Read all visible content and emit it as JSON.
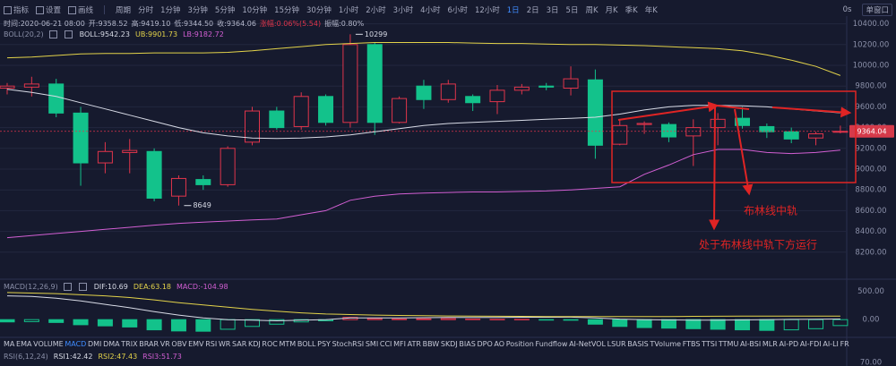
{
  "toolbar": {
    "left": [
      "指标",
      "设置",
      "画线"
    ],
    "periods_title": "周期",
    "periods": [
      "分时",
      "1分钟",
      "3分钟",
      "5分钟",
      "10分钟",
      "15分钟",
      "30分钟",
      "1小时",
      "2小时",
      "3小时",
      "4小时",
      "6小时",
      "12小时",
      "1日",
      "2日",
      "3日",
      "5日",
      "周K",
      "月K",
      "季K",
      "年K"
    ],
    "active_period": "1日",
    "right": [
      "0s",
      "单窗口"
    ]
  },
  "info_line": [
    "时间:2020-06-21 08:00",
    "开:9358.52",
    "高:9419.10",
    "低:9344.50",
    "收:9364.06",
    "涨幅:0.06%(5.54)",
    "振幅:0.80%"
  ],
  "chart_data": [
    {
      "type": "candlestick",
      "legend": [
        "BOLL(20,2)",
        "BOLL:9542.23",
        "UB:9901.73",
        "LB:9182.72"
      ],
      "legend_colors": [
        "#8a8fa8",
        "#d8dbe6",
        "#e3d34a",
        "#d25fd3"
      ],
      "up_color": "#e0354b",
      "down_color": "#13c28b",
      "open": [
        9780,
        9790,
        9820,
        9540,
        9060,
        9160,
        9170,
        8740,
        8900,
        8850,
        9260,
        9560,
        9410,
        9700,
        9450,
        10200,
        9450,
        9800,
        9670,
        9700,
        9650,
        9760,
        9800,
        9780,
        9860,
        9240,
        9430,
        9430,
        9320,
        9400,
        9490,
        9410,
        9360,
        9300,
        9358.52
      ],
      "close": [
        9800,
        9820,
        9540,
        9060,
        9170,
        9180,
        8720,
        8910,
        8850,
        9200,
        9560,
        9400,
        9700,
        9450,
        10200,
        9450,
        9680,
        9670,
        9820,
        9640,
        9760,
        9790,
        9790,
        9870,
        9230,
        9420,
        9440,
        9310,
        9400,
        9480,
        9420,
        9360,
        9290,
        9340,
        9364.06
      ],
      "high": [
        9830,
        9890,
        9870,
        9600,
        9260,
        9290,
        9200,
        8940,
        8940,
        9220,
        9600,
        9600,
        9740,
        9720,
        10299,
        10220,
        9700,
        9860,
        9860,
        9720,
        9810,
        9820,
        9830,
        9990,
        9960,
        9480,
        9460,
        9450,
        9480,
        9540,
        9600,
        9440,
        9400,
        9360,
        9419.1
      ],
      "low": [
        9720,
        9700,
        9500,
        8840,
        8960,
        8960,
        8690,
        8649,
        8800,
        8830,
        9230,
        9380,
        9380,
        9420,
        9400,
        9330,
        9440,
        9580,
        9640,
        9560,
        9530,
        9720,
        9760,
        9710,
        9100,
        9230,
        9340,
        9260,
        9030,
        9230,
        9390,
        9300,
        9250,
        9230,
        9344.5
      ],
      "series": [
        {
          "color": "#d8dbe6",
          "values": [
            9770,
            9740,
            9700,
            9640,
            9580,
            9520,
            9460,
            9400,
            9350,
            9320,
            9300,
            9296,
            9300,
            9310,
            9330,
            9360,
            9390,
            9420,
            9440,
            9450,
            9460,
            9470,
            9480,
            9490,
            9500,
            9530,
            9570,
            9600,
            9615,
            9615,
            9610,
            9600,
            9580,
            9560,
            9542.23
          ]
        },
        {
          "color": "#e3d34a",
          "values": [
            10072,
            10080,
            10095,
            10110,
            10115,
            10115,
            10120,
            10120,
            10120,
            10125,
            10140,
            10160,
            10180,
            10200,
            10210,
            10220,
            10220,
            10220,
            10220,
            10215,
            10210,
            10210,
            10205,
            10200,
            10200,
            10195,
            10190,
            10180,
            10170,
            10160,
            10140,
            10100,
            10050,
            9990,
            9901.73
          ]
        },
        {
          "color": "#d25fd3",
          "values": [
            8340,
            8360,
            8380,
            8400,
            8420,
            8440,
            8460,
            8478,
            8490,
            8500,
            8510,
            8520,
            8560,
            8600,
            8700,
            8740,
            8760,
            8770,
            8775,
            8780,
            8780,
            8785,
            8790,
            8800,
            8815,
            8830,
            8950,
            9040,
            9140,
            9190,
            9190,
            9160,
            9150,
            9160,
            9182.72
          ]
        }
      ],
      "last_price": 9364.04,
      "ylim": [
        8000,
        10500
      ],
      "yticks": [
        {
          "value": 8200,
          "label": "8200.00"
        },
        {
          "value": 8400,
          "label": "8400.00"
        },
        {
          "value": 8600,
          "label": "8600.00"
        },
        {
          "value": 8800,
          "label": "8800.00"
        },
        {
          "value": 9000,
          "label": "9000.00"
        },
        {
          "value": 9200,
          "label": "9200.00"
        },
        {
          "value": 9400,
          "label": "9400.00"
        },
        {
          "value": 9600,
          "label": "9600.00"
        },
        {
          "value": 9800,
          "label": "9800.00"
        },
        {
          "value": 10000,
          "label": "10000.00"
        },
        {
          "value": 10200,
          "label": "10200.00"
        },
        {
          "value": 10400,
          "label": "10400.00"
        }
      ],
      "grid": true,
      "annotations": [
        "布林线中轨",
        "处于布林线中轨下方运行"
      ]
    },
    {
      "type": "macd",
      "legend": [
        "MACD(12,26,9)",
        "DIF:10.69",
        "DEA:63.18",
        "MACD:-104.98"
      ],
      "legend_colors": [
        "#8a8fa8",
        "#d8dbe6",
        "#e3d34a",
        "#d25fd3"
      ],
      "up_color": "#e0354b",
      "down_color": "#13c28b",
      "values": [
        -40,
        -35,
        -50,
        -90,
        -110,
        -130,
        -180,
        -200,
        -205,
        -170,
        -120,
        -80,
        -40,
        -20,
        40,
        20,
        10,
        15,
        20,
        10,
        5,
        5,
        -5,
        -10,
        -80,
        -120,
        -140,
        -150,
        -160,
        -170,
        -180,
        -190,
        -180,
        -160,
        -104.98
      ],
      "series": [
        {
          "color": "#d8dbe6",
          "values": [
            420,
            410,
            380,
            330,
            270,
            210,
            140,
            80,
            30,
            0,
            -10,
            -20,
            -10,
            0,
            30,
            30,
            30,
            35,
            40,
            40,
            40,
            42,
            42,
            44,
            30,
            10,
            0,
            -5,
            -10,
            -8,
            -5,
            0,
            5,
            8,
            10.69
          ]
        },
        {
          "color": "#e3d34a",
          "values": [
            480,
            470,
            460,
            440,
            420,
            390,
            350,
            300,
            260,
            220,
            180,
            150,
            120,
            100,
            90,
            80,
            75,
            70,
            65,
            62,
            60,
            58,
            56,
            55,
            55,
            54,
            54,
            56,
            58,
            60,
            62,
            63,
            63.5,
            63.4,
            63.18
          ]
        }
      ],
      "ylim": [
        -250,
        620
      ],
      "yticks": [
        {
          "value": 0,
          "label": "0.00"
        },
        {
          "value": 500,
          "label": "500.00"
        }
      ]
    }
  ],
  "indicator_tabs": [
    "MA",
    "EMA",
    "VOLUME",
    "MACD",
    "DMI",
    "DMA",
    "TRIX",
    "BRAR",
    "VR",
    "OBV",
    "EMV",
    "RSI",
    "WR",
    "SAR",
    "KDJ",
    "ROC",
    "MTM",
    "BOLL",
    "PSY",
    "StochRSI",
    "SMI",
    "CCI",
    "MFI",
    "ATR",
    "BBW",
    "SKDJ",
    "BIAS",
    "DPO",
    "AO",
    "Position",
    "Fundflow",
    "AI-NetVOL",
    "LSUR",
    "BASIS",
    "TVolume",
    "FTBS",
    "TTSI",
    "TTMU",
    "AI-BSI",
    "MLR",
    "AI-PD",
    "AI-FDI",
    "AI-LI",
    "FR"
  ],
  "active_tab": "MACD",
  "rsi_legend": [
    "RSI(6,12,24)",
    "RSI1:42.42",
    "RSI2:47.43",
    "RSI3:51.73"
  ],
  "rsi_tick": {
    "value": 70,
    "label": "70.00"
  }
}
